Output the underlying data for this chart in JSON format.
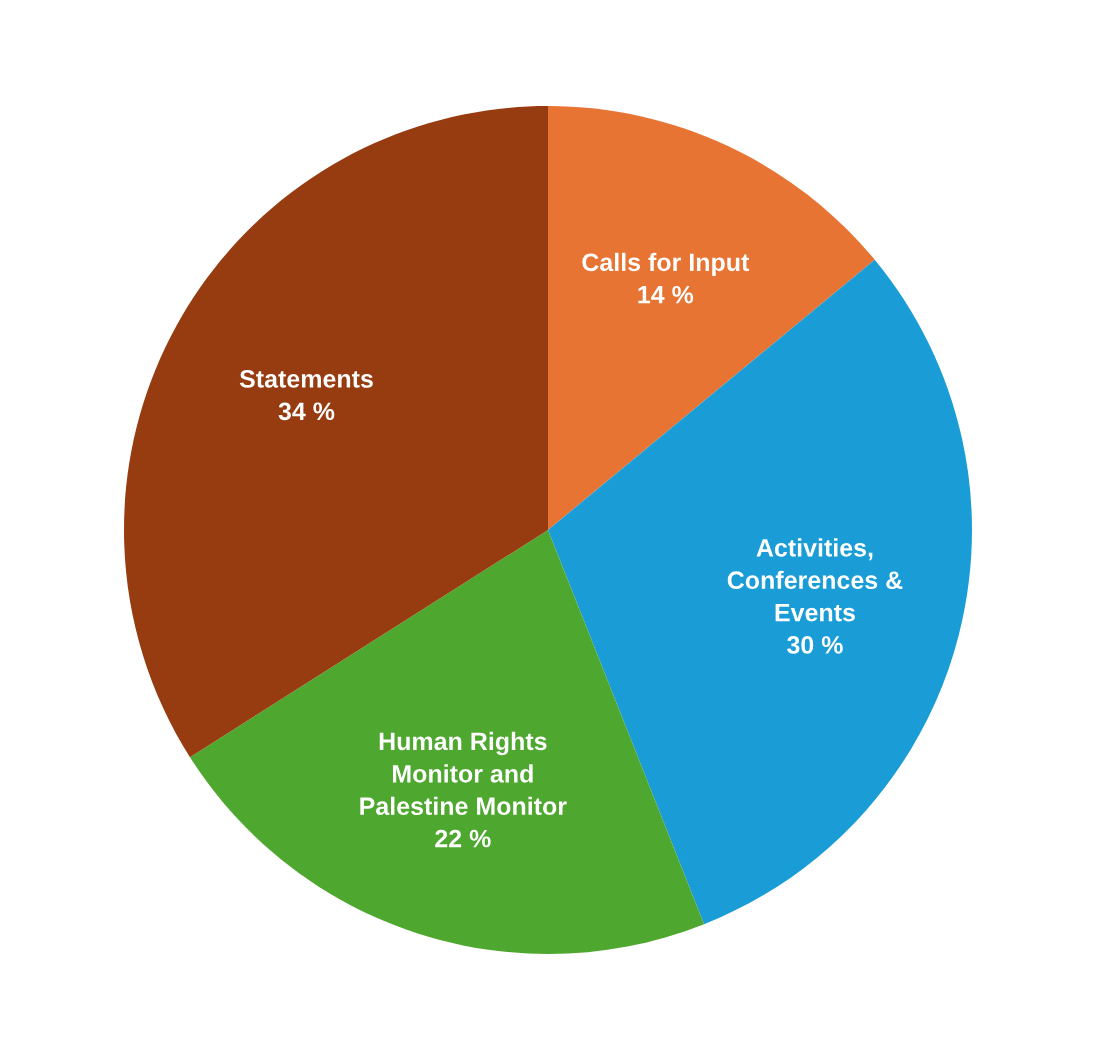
{
  "chart_data": {
    "type": "pie",
    "categories": [
      "Calls for Input",
      "Activities,\nConferences &\nEvents",
      "Human Rights\nMonitor and\nPalestine Monitor",
      "Statements"
    ],
    "values": [
      14,
      30,
      22,
      34
    ],
    "value_labels": [
      "14 %",
      "30 %",
      "22 %",
      "34 %"
    ],
    "colors": [
      "#e87434",
      "#1a9dd6",
      "#4ea72e",
      "#973c10"
    ],
    "legend": false
  }
}
